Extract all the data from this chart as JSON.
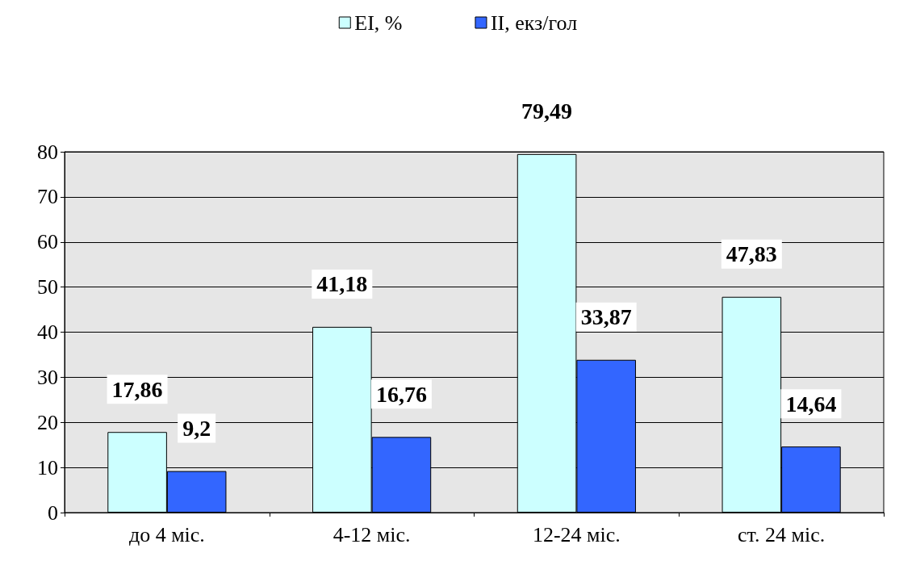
{
  "chart_data": {
    "type": "bar",
    "categories": [
      "до 4 міс.",
      "4-12 міс.",
      "12-24 міс.",
      "ст. 24 міс."
    ],
    "series": [
      {
        "name": "EI, %",
        "color": "#ccffff",
        "values": [
          17.86,
          41.18,
          79.49,
          47.83
        ],
        "value_labels": [
          "17,86",
          "41,18",
          "79,49",
          "47,83"
        ]
      },
      {
        "name": "II, екз/гол",
        "color": "#3366ff",
        "values": [
          9.2,
          16.76,
          33.87,
          14.64
        ],
        "value_labels": [
          "9,2",
          "16,76",
          "33,87",
          "14,64"
        ]
      }
    ],
    "ylim": [
      0,
      80
    ],
    "yticks": [
      0,
      10,
      20,
      30,
      40,
      50,
      60,
      70,
      80
    ],
    "grid": "y",
    "legend": "top"
  }
}
